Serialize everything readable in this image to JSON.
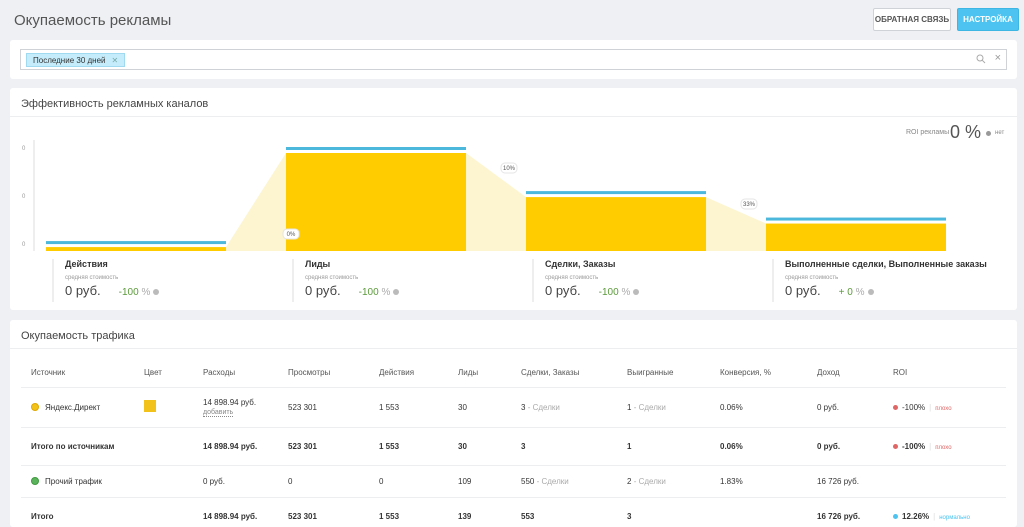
{
  "page": {
    "title": "Окупаемость рекламы"
  },
  "header": {
    "feedback_label": "ОБРАТНАЯ СВЯЗЬ",
    "settings_label": "НАСТРОЙКА"
  },
  "filter": {
    "chip_label": "Последние 30 дней"
  },
  "efficiency": {
    "title": "Эффективность рекламных каналов",
    "roi_label": "ROI рекламы",
    "roi_value": "0 %",
    "roi_status": "нет",
    "y_ticks": [
      "0",
      "0",
      "0"
    ],
    "transitions": [
      "0%",
      "10%",
      "33%"
    ],
    "stage_fill_fraction": [
      0.04,
      1.0,
      0.55,
      0.28
    ],
    "colors": {
      "fill": "#ffcc00",
      "top": "#4cb8dc",
      "transition": "#fdf5cf"
    },
    "stages": [
      {
        "name": "Действия",
        "sub": "средняя стоимость",
        "cost": "0 руб.",
        "pct": "-100",
        "pct_unit": "%"
      },
      {
        "name": "Лиды",
        "sub": "средняя стоимость",
        "cost": "0 руб.",
        "pct": "-100",
        "pct_unit": "%"
      },
      {
        "name": "Сделки, Заказы",
        "sub": "средняя стоимость",
        "cost": "0 руб.",
        "pct": "-100",
        "pct_unit": "%"
      },
      {
        "name": "Выполненные сделки, Выполненные заказы",
        "sub": "средняя стоимость",
        "cost": "0 руб.",
        "pct": "+ 0",
        "pct_unit": "%"
      }
    ]
  },
  "traffic": {
    "title": "Окупаемость трафика",
    "columns": [
      "Источник",
      "Цвет",
      "Расходы",
      "Просмотры",
      "Действия",
      "Лиды",
      "Сделки, Заказы",
      "Выигранные",
      "Конверсия, %",
      "Доход",
      "ROI"
    ],
    "rows": [
      {
        "source": "Яндекс.Директ",
        "expenses": "14 898.94 руб.",
        "add_label": "добавить",
        "views": "523 301",
        "actions": "1 553",
        "leads": "30",
        "deals": "3",
        "deals_suffix": "- Сделки",
        "won": "1",
        "won_suffix": "- Сделки",
        "conversion": "0.06%",
        "income": "0 руб.",
        "roi": "-100%",
        "roi_status": "плохо"
      },
      {
        "source": "Итого по источникам",
        "expenses": "14 898.94 руб.",
        "views": "523 301",
        "actions": "1 553",
        "leads": "30",
        "deals": "3",
        "won": "1",
        "conversion": "0.06%",
        "income": "0 руб.",
        "roi": "-100%",
        "roi_status": "плохо"
      },
      {
        "source": "Прочий трафик",
        "expenses": "0 руб.",
        "views": "0",
        "actions": "0",
        "leads": "109",
        "deals": "550",
        "deals_suffix": "- Сделки",
        "won": "2",
        "won_suffix": "- Сделки",
        "conversion": "1.83%",
        "income": "16 726 руб."
      },
      {
        "source": "Итого",
        "expenses": "14 898.94 руб.",
        "views": "523 301",
        "actions": "1 553",
        "leads": "139",
        "deals": "553",
        "won": "3",
        "income": "16 726 руб.",
        "roi": "12.26%",
        "roi_status": "нормально"
      }
    ]
  }
}
